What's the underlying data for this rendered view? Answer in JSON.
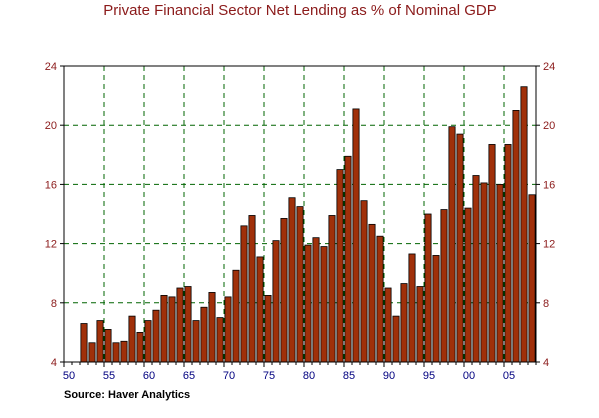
{
  "source": "Source: Haver Analytics",
  "chart_data": {
    "type": "bar",
    "title": "Private Financial Sector Net Lending as % of Nominal GDP",
    "xlabel": "",
    "ylabel": "",
    "x_ticks": [
      "50",
      "55",
      "60",
      "65",
      "70",
      "75",
      "80",
      "85",
      "90",
      "95",
      "00",
      "05"
    ],
    "y_ticks": [
      "4",
      "8",
      "12",
      "16",
      "20",
      "24"
    ],
    "ylim": [
      4,
      24
    ],
    "xlim": [
      1950,
      2009
    ],
    "grid": true,
    "bar_color": "#a0300a",
    "grid_color": "#006400",
    "title_color": "#8b1a1a",
    "axis_label_color": "#8b1a1a",
    "x_tick_color": "#000080",
    "years": [
      1952,
      1953,
      1954,
      1955,
      1956,
      1957,
      1958,
      1959,
      1960,
      1961,
      1962,
      1963,
      1964,
      1965,
      1966,
      1967,
      1968,
      1969,
      1970,
      1971,
      1972,
      1973,
      1974,
      1975,
      1976,
      1977,
      1978,
      1979,
      1980,
      1981,
      1982,
      1983,
      1984,
      1985,
      1986,
      1987,
      1988,
      1989,
      1990,
      1991,
      1992,
      1993,
      1994,
      1995,
      1996,
      1997,
      1998,
      1999,
      2000,
      2001,
      2002,
      2003,
      2004,
      2005,
      2006,
      2007,
      2008
    ],
    "values": [
      6.6,
      5.3,
      6.8,
      6.2,
      5.3,
      5.4,
      7.1,
      6.0,
      6.8,
      7.5,
      8.5,
      8.4,
      9.0,
      9.1,
      6.8,
      7.7,
      8.7,
      7.0,
      8.4,
      10.2,
      13.2,
      13.9,
      11.1,
      8.5,
      12.2,
      13.7,
      15.1,
      14.5,
      11.9,
      12.4,
      11.8,
      13.9,
      17.0,
      17.9,
      21.1,
      14.9,
      13.3,
      12.5,
      9.0,
      7.1,
      9.3,
      11.3,
      9.1,
      14.0,
      11.2,
      14.3,
      19.9,
      19.4,
      14.4,
      16.6,
      16.1,
      18.7,
      16.0,
      18.7,
      21.0,
      22.6,
      15.3
    ]
  }
}
